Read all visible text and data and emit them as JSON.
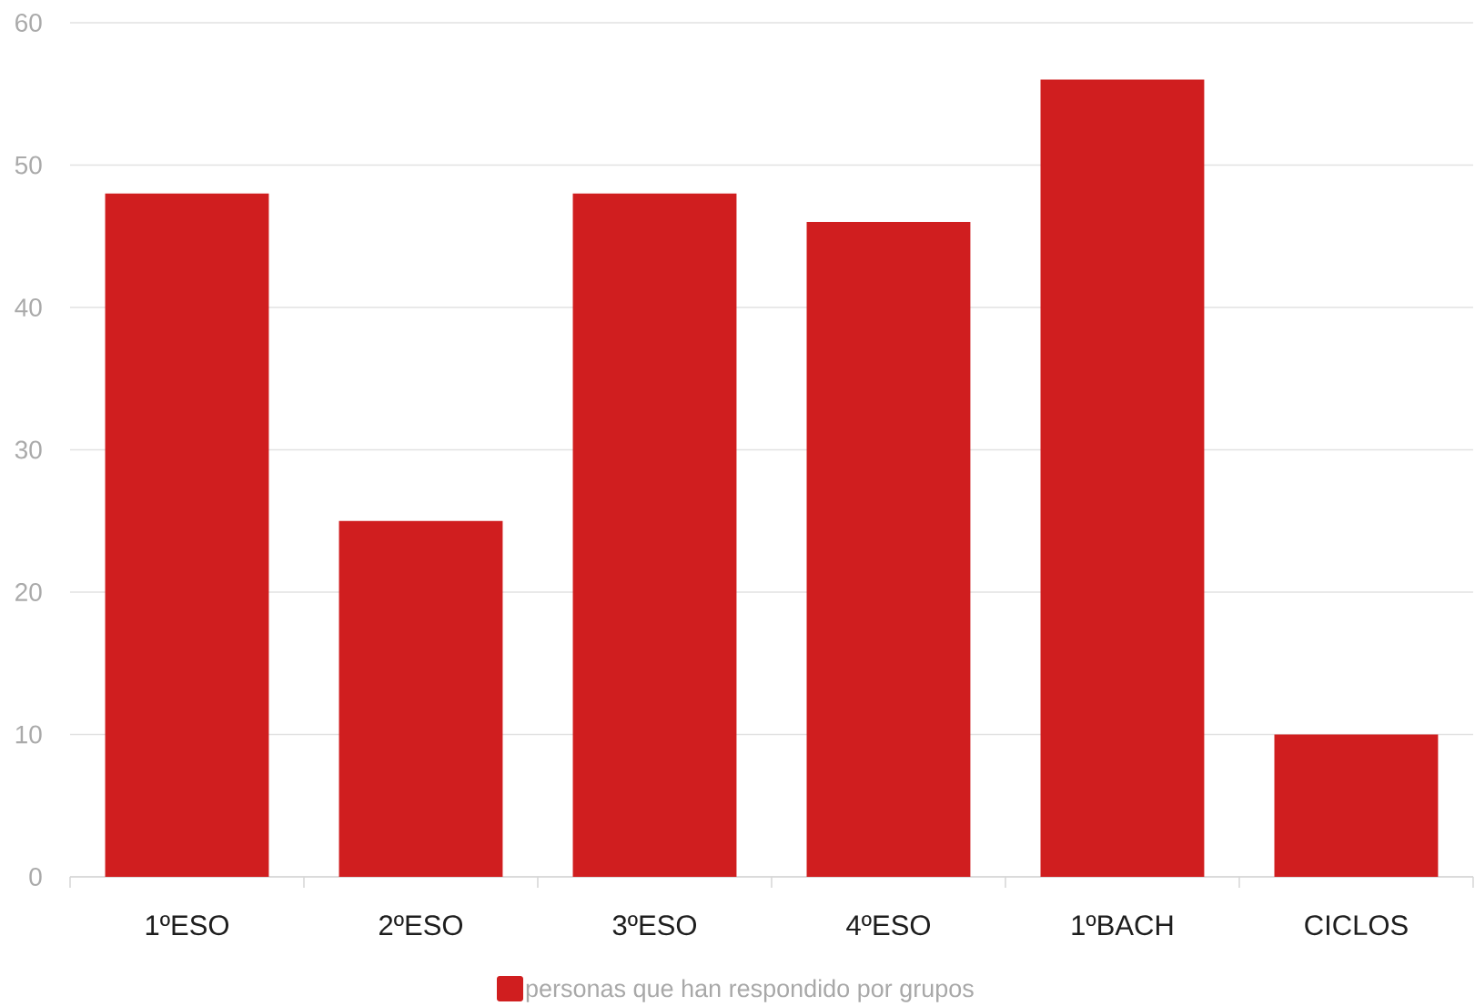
{
  "chart_data": {
    "type": "bar",
    "categories": [
      "1ºESO",
      "2ºESO",
      "3ºESO",
      "4ºESO",
      "1ºBACH",
      "CICLOS"
    ],
    "series": [
      {
        "name": "personas que han respondido por grupos",
        "color": "#d01e1f",
        "values": [
          48,
          25,
          48,
          46,
          56,
          10
        ]
      }
    ],
    "ylim": [
      0,
      60
    ],
    "yticks": [
      0,
      10,
      20,
      30,
      40,
      50,
      60
    ],
    "grid": "y",
    "legend": "bottom"
  }
}
